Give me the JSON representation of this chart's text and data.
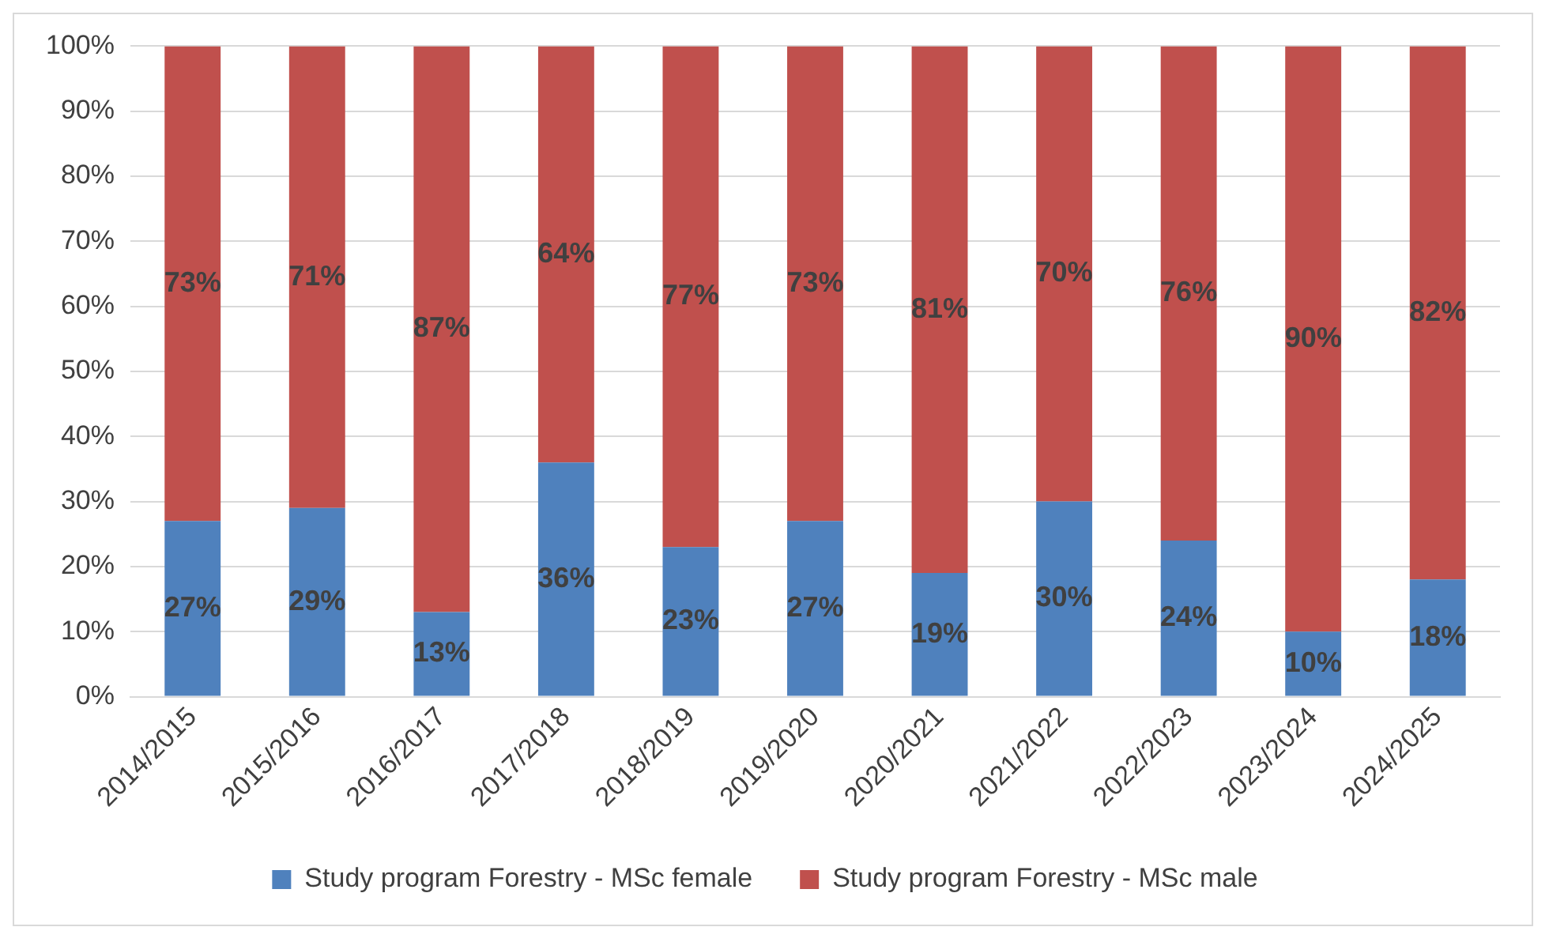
{
  "chart_data": {
    "type": "bar",
    "stacked": true,
    "categories": [
      "2014/2015",
      "2015/2016",
      "2016/2017",
      "2017/2018",
      "2018/2019",
      "2019/2020",
      "2020/2021",
      "2021/2022",
      "2022/2023",
      "2023/2024",
      "2024/2025"
    ],
    "series": [
      {
        "name": "Study program Forestry - MSc female",
        "color": "#4f81bd",
        "values": [
          27,
          29,
          13,
          36,
          23,
          27,
          19,
          30,
          24,
          10,
          18
        ],
        "value_labels": [
          "27%",
          "29%",
          "13%",
          "36%",
          "23%",
          "27%",
          "19%",
          "30%",
          "24%",
          "10%",
          "18%"
        ]
      },
      {
        "name": "Study program Forestry - MSc male",
        "color": "#c0504d",
        "values": [
          73,
          71,
          87,
          64,
          77,
          73,
          81,
          70,
          76,
          90,
          82
        ],
        "value_labels": [
          "73%",
          "71%",
          "87%",
          "64%",
          "77%",
          "73%",
          "81%",
          "70%",
          "76%",
          "90%",
          "82%"
        ]
      }
    ],
    "ylim": [
      0,
      100
    ],
    "yticks": [
      {
        "value": 0,
        "label": "0%"
      },
      {
        "value": 10,
        "label": "10%"
      },
      {
        "value": 20,
        "label": "20%"
      },
      {
        "value": 30,
        "label": "30%"
      },
      {
        "value": 40,
        "label": "40%"
      },
      {
        "value": 50,
        "label": "50%"
      },
      {
        "value": 60,
        "label": "60%"
      },
      {
        "value": 70,
        "label": "70%"
      },
      {
        "value": 80,
        "label": "80%"
      },
      {
        "value": 90,
        "label": "90%"
      },
      {
        "value": 100,
        "label": "100%"
      }
    ],
    "grid": "y",
    "legend": "bottom"
  }
}
